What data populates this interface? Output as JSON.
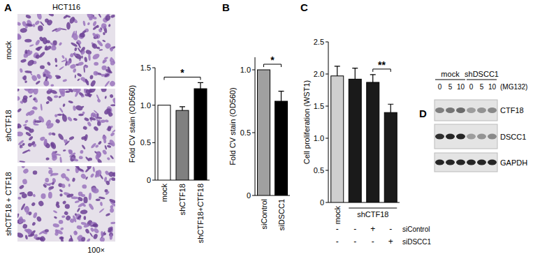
{
  "chart_data": [
    {
      "type": "bar",
      "y_label": "Fold CV stain (OD560)",
      "categories": [
        "mock",
        "shCTF18",
        "shCTF18+CTF18"
      ],
      "values": [
        1.0,
        0.93,
        1.22
      ],
      "errors": [
        null,
        0.05,
        0.08
      ],
      "colors": [
        "#ffffff",
        "#808080",
        "#000000"
      ],
      "ylim": [
        0,
        1.5
      ],
      "yticks": [
        0,
        0.5,
        {
          "value": 1,
          "label": "1.0"
        },
        1.5
      ],
      "grid": false,
      "annotations": [
        {
          "text": "*",
          "between": [
            0,
            2
          ]
        }
      ]
    },
    {
      "type": "bar",
      "y_label": "Fold CV stain (OD560)",
      "categories": [
        "siControl",
        "siDSCC1"
      ],
      "values": [
        1.0,
        0.75
      ],
      "errors": [
        null,
        0.08
      ],
      "colors": [
        "#a0a0a0",
        "#000000"
      ],
      "ylim": [
        0,
        1.1
      ],
      "yticks": [
        0,
        0.5,
        {
          "value": 1,
          "label": "1.0"
        }
      ],
      "grid": false,
      "annotations": [
        {
          "text": "*",
          "between": [
            0,
            1
          ]
        }
      ]
    },
    {
      "type": "bar",
      "y_label": "Cell proliferation (WST1)",
      "categories": [
        "mock",
        null,
        null,
        null
      ],
      "values": [
        1.97,
        1.92,
        1.87,
        1.4
      ],
      "errors": [
        0.15,
        0.17,
        0.12,
        0.13
      ],
      "colors": [
        "#cfcfcf",
        "#1a1a1a",
        "#1a1a1a",
        "#1a1a1a"
      ],
      "ylim": [
        0,
        2.5
      ],
      "yticks": [
        0,
        0.5,
        {
          "value": 1,
          "label": "1.0"
        },
        1.5,
        {
          "value": 2,
          "label": "2.0"
        },
        2.5
      ],
      "grid": false,
      "group_label": "shCTF18",
      "condition_rows": [
        {
          "name": "siControl",
          "marks": [
            "-",
            "-",
            "+",
            "-"
          ]
        },
        {
          "name": "siDSCC1",
          "marks": [
            "-",
            "-",
            "-",
            "+"
          ]
        }
      ],
      "annotations": [
        {
          "text": "**",
          "between": [
            2,
            3
          ]
        }
      ]
    }
  ],
  "panel_labels": [
    "A",
    "B",
    "C",
    "D"
  ],
  "micrographs": {
    "cell_line": "HCT116",
    "labels": [
      "mock",
      "shCTF18",
      "shCTF18 + CTF18"
    ],
    "magnification": "100×"
  },
  "blot": {
    "groups": [
      {
        "label": "mock",
        "lanes": [
          0,
          5,
          10
        ]
      },
      {
        "label": "shDSCC1",
        "lanes": [
          0,
          5,
          10
        ]
      }
    ],
    "treatment": "(MG132)",
    "rows": [
      {
        "label": "CTF18",
        "intensities": [
          0.5,
          0.55,
          0.6,
          0.35,
          0.4,
          0.45
        ]
      },
      {
        "label": "DSCC1",
        "intensities": [
          0.9,
          0.95,
          0.95,
          0.35,
          0.4,
          0.45
        ]
      },
      {
        "label": "GAPDH",
        "intensities": [
          0.95,
          0.95,
          0.95,
          0.95,
          0.95,
          0.95
        ]
      }
    ]
  }
}
